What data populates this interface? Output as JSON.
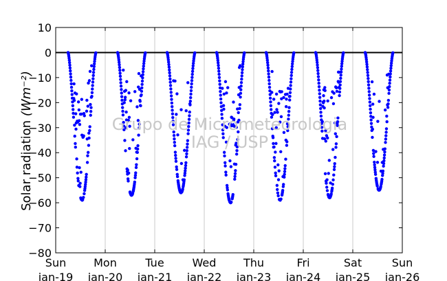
{
  "chart_data": {
    "type": "scatter",
    "title": "",
    "ylabel": "Solar radiation",
    "ylabel_units": "(Wm⁻²)",
    "xlabel": "",
    "ylim": [
      -80,
      10
    ],
    "yticks": [
      10,
      0,
      -10,
      -20,
      -30,
      -40,
      -50,
      -60,
      -70,
      -80
    ],
    "xlim": [
      "2014-01-19",
      "2014-01-26"
    ],
    "xticks": [
      {
        "day": "Sun",
        "date": "Jan-19"
      },
      {
        "day": "Mon",
        "date": "Jan-20"
      },
      {
        "day": "Tue",
        "date": "Jan-21"
      },
      {
        "day": "Wed",
        "date": "Jan-22"
      },
      {
        "day": "Thu",
        "date": "Jan-23"
      },
      {
        "day": "Fri",
        "date": "Jan-24"
      },
      {
        "day": "Sat",
        "date": "Jan-25"
      },
      {
        "day": "Sun",
        "date": "Jan-26"
      }
    ],
    "grid": "vertical",
    "zero_line": true,
    "marker_color": "#0000ff",
    "series": [
      {
        "days": [
          {
            "date": "Jan-19",
            "sunrise_h": 6.0,
            "sunset_h": 19.5,
            "min_value": -59,
            "cloud_spread": 0.55
          },
          {
            "date": "Jan-20",
            "sunrise_h": 6.0,
            "sunset_h": 19.5,
            "min_value": -57,
            "cloud_spread": 0.45
          },
          {
            "date": "Jan-21",
            "sunrise_h": 6.0,
            "sunset_h": 19.5,
            "min_value": -56,
            "cloud_spread": 0.2
          },
          {
            "date": "Jan-22",
            "sunrise_h": 6.0,
            "sunset_h": 19.5,
            "min_value": -60,
            "cloud_spread": 0.4
          },
          {
            "date": "Jan-23",
            "sunrise_h": 6.0,
            "sunset_h": 19.5,
            "min_value": -59,
            "cloud_spread": 0.55
          },
          {
            "date": "Jan-24",
            "sunrise_h": 6.0,
            "sunset_h": 19.5,
            "min_value": -58,
            "cloud_spread": 0.5
          },
          {
            "date": "Jan-25",
            "sunrise_h": 6.0,
            "sunset_h": 19.5,
            "min_value": -55,
            "cloud_spread": 0.25
          }
        ]
      }
    ]
  },
  "watermark": {
    "line1": "Grupo de Micrometeorologia",
    "line2": "IAG / USP"
  }
}
